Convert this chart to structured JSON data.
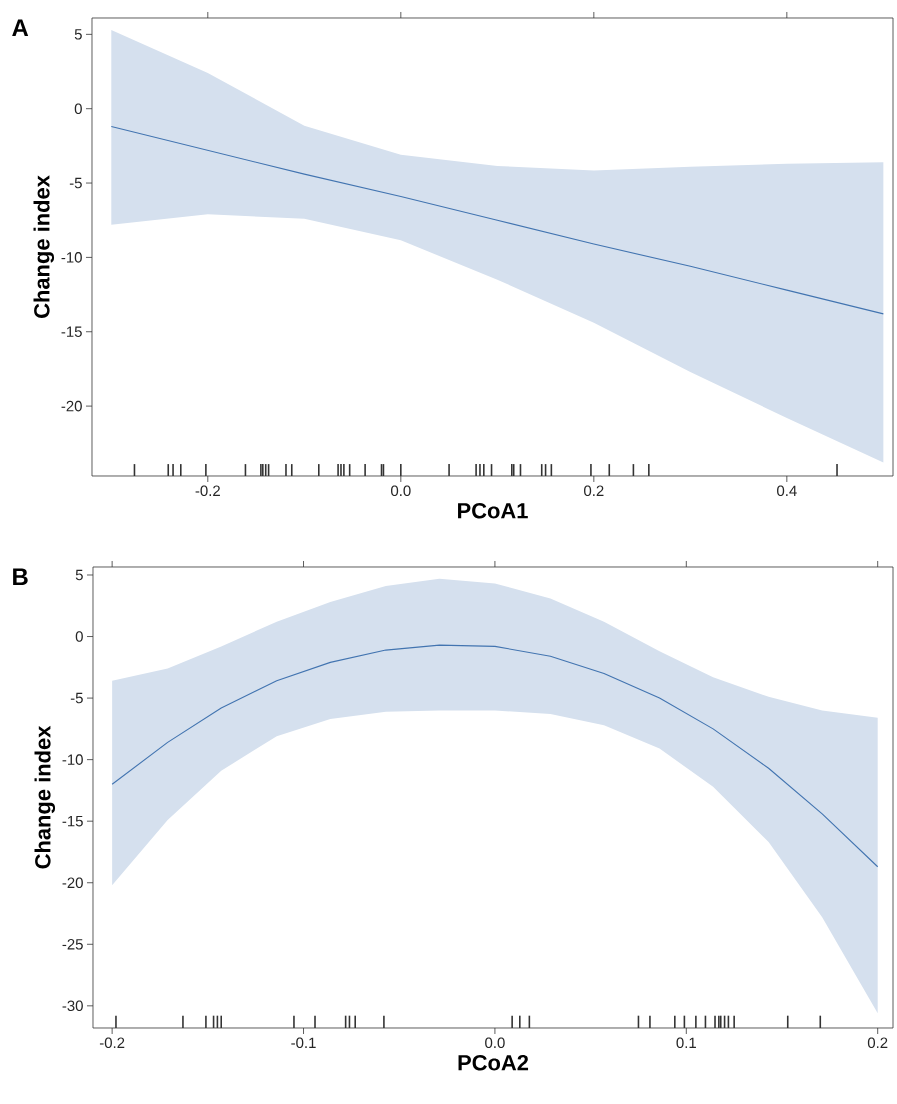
{
  "chart_data": [
    {
      "type": "line",
      "title": "A",
      "xlabel": "PCoA1",
      "ylabel": "Change index",
      "xlim": [
        -0.32,
        0.51
      ],
      "ylim": [
        -24.7,
        6.1
      ],
      "xticks": [
        -0.2,
        {
          "value": 0,
          "label": "0.0"
        },
        0.2,
        0.4
      ],
      "yticks": [
        -20,
        -15,
        -10,
        -5,
        0,
        5
      ],
      "series": [
        {
          "color": "#4274b0",
          "x": [
            -0.3,
            -0.2,
            -0.1,
            0.0,
            0.1,
            0.2,
            0.3,
            0.4,
            0.5
          ],
          "values": [
            -1.2,
            -2.8,
            -4.4,
            -5.9,
            -7.5,
            -9.1,
            -10.6,
            -12.2,
            -13.8
          ],
          "upper": [
            5.3,
            2.4,
            -1.15,
            -3.1,
            -3.85,
            -4.15,
            -3.9,
            -3.7,
            -3.6
          ],
          "lower": [
            -7.8,
            -7.1,
            -7.4,
            -8.85,
            -11.5,
            -14.4,
            -17.7,
            -20.8,
            -23.8
          ]
        },
        {
          "type": "bar",
          "color": "#333333",
          "x": [
            -0.276,
            -0.241,
            -0.236,
            -0.228,
            -0.202,
            -0.161,
            -0.145,
            -0.143,
            -0.14,
            -0.137,
            -0.119,
            -0.113,
            -0.085,
            -0.065,
            -0.062,
            -0.059,
            -0.053,
            -0.037,
            -0.02,
            -0.018,
            0.0,
            0.05,
            0.078,
            0.082,
            0.086,
            0.094,
            0.115,
            0.117,
            0.124,
            0.146,
            0.15,
            0.156,
            0.197,
            0.216,
            0.241,
            0.257,
            0.452
          ],
          "base": [
            -24.7,
            -24.7,
            -24.7,
            -24.7,
            -24.7,
            -24.7,
            -24.7,
            -24.7,
            -24.7,
            -24.7,
            -24.7,
            -24.7,
            -24.7,
            -24.7,
            -24.7,
            -24.7,
            -24.7,
            -24.7,
            -24.7,
            -24.7,
            -24.7,
            -24.7,
            -24.7,
            -24.7,
            -24.7,
            -24.7,
            -24.7,
            -24.7,
            -24.7,
            -24.7,
            -24.7,
            -24.7,
            -24.7,
            -24.7,
            -24.7,
            -24.7,
            -24.7
          ],
          "values": [
            0.8,
            0.8,
            0.8,
            0.8,
            0.8,
            0.8,
            0.8,
            0.8,
            0.8,
            0.8,
            0.8,
            0.8,
            0.8,
            0.8,
            0.8,
            0.8,
            0.8,
            0.8,
            0.8,
            0.8,
            0.8,
            0.8,
            0.8,
            0.8,
            0.8,
            0.8,
            0.8,
            0.8,
            0.8,
            0.8,
            0.8,
            0.8,
            0.8,
            0.8,
            0.8,
            0.8,
            0.8
          ]
        }
      ]
    },
    {
      "type": "line",
      "title": "B",
      "xlabel": "PCoA2",
      "ylabel": "Change index",
      "xlim": [
        -0.21,
        0.208
      ],
      "ylim": [
        -31.8,
        5.65
      ],
      "xticks": [
        -0.2,
        -0.1,
        {
          "value": 0,
          "label": "0.0"
        },
        0.1,
        0.2
      ],
      "yticks": [
        -30,
        -25,
        -20,
        -15,
        -10,
        -5,
        0,
        5
      ],
      "series": [
        {
          "color": "#4274b0",
          "x": [
            -0.2,
            -0.171,
            -0.143,
            -0.114,
            -0.086,
            -0.057,
            -0.029,
            0.0,
            0.029,
            0.057,
            0.086,
            0.114,
            0.143,
            0.171,
            0.2
          ],
          "values": [
            -12.0,
            -8.6,
            -5.8,
            -3.6,
            -2.1,
            -1.1,
            -0.7,
            -0.8,
            -1.6,
            -3.0,
            -5.0,
            -7.5,
            -10.7,
            -14.4,
            -18.7
          ],
          "upper": [
            -3.6,
            -2.6,
            -0.8,
            1.2,
            2.8,
            4.1,
            4.7,
            4.3,
            3.1,
            1.2,
            -1.2,
            -3.3,
            -4.9,
            -6.0,
            -6.6
          ],
          "lower": [
            -20.2,
            -14.9,
            -10.9,
            -8.1,
            -6.7,
            -6.1,
            -6.0,
            -6.0,
            -6.3,
            -7.2,
            -9.1,
            -12.2,
            -16.7,
            -22.8,
            -30.6
          ]
        },
        {
          "type": "bar",
          "color": "#333333",
          "x": [
            -0.198,
            -0.163,
            -0.151,
            -0.147,
            -0.145,
            -0.143,
            -0.105,
            -0.094,
            -0.078,
            -0.076,
            -0.073,
            -0.058,
            0.009,
            0.013,
            0.018,
            0.075,
            0.081,
            0.094,
            0.099,
            0.105,
            0.11,
            0.115,
            0.117,
            0.118,
            0.12,
            0.122,
            0.125,
            0.153,
            0.17
          ],
          "base": [
            -31.8,
            -31.8,
            -31.8,
            -31.8,
            -31.8,
            -31.8,
            -31.8,
            -31.8,
            -31.8,
            -31.8,
            -31.8,
            -31.8,
            -31.8,
            -31.8,
            -31.8,
            -31.8,
            -31.8,
            -31.8,
            -31.8,
            -31.8,
            -31.8,
            -31.8,
            -31.8,
            -31.8,
            -31.8,
            -31.8,
            -31.8,
            -31.8,
            -31.8
          ],
          "values": [
            1.0,
            1.0,
            1.0,
            1.0,
            1.0,
            1.0,
            1.0,
            1.0,
            1.0,
            1.0,
            1.0,
            1.0,
            1.0,
            1.0,
            1.0,
            1.0,
            1.0,
            1.0,
            1.0,
            1.0,
            1.0,
            1.0,
            1.0,
            1.0,
            1.0,
            1.0,
            1.0,
            1.0,
            1.0
          ]
        }
      ]
    }
  ]
}
